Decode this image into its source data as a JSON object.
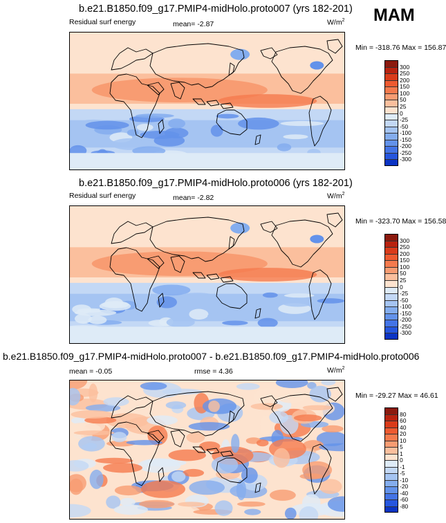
{
  "season": "MAM",
  "panels": [
    {
      "title": "b.e21.B1850.f09_g17.PMIP4-midHolo.proto007 (yrs 182-201)",
      "left_label": "Residual surf energy",
      "mean_text": "mean=  -2.87",
      "rmse_text": "",
      "units_base": "W/m",
      "units_exp": "2",
      "minmax_text": "Min = -318.76 Max = 156.87",
      "colorbar": {
        "labels": [
          "300",
          "250",
          "200",
          "150",
          "100",
          "50",
          "25",
          "0",
          "-25",
          "-50",
          "-100",
          "-150",
          "-200",
          "-250",
          "-300"
        ],
        "colors": [
          "#8b1a0e",
          "#b8230f",
          "#d93b1a",
          "#ee5a30",
          "#f57a4d",
          "#f89c72",
          "#fbbf9d",
          "#fde3cf",
          "#deebf7",
          "#c3d8f5",
          "#a5c4f2",
          "#84adee",
          "#6392ea",
          "#4474e6",
          "#2656de",
          "#0b34c4"
        ]
      },
      "data_mean": -2.87,
      "data_min": -318.76,
      "data_max": 156.87
    },
    {
      "title": "b.e21.B1850.f09_g17.PMIP4-midHolo.proto006 (yrs 182-201)",
      "left_label": "Residual surf energy",
      "mean_text": "mean=  -2.82",
      "rmse_text": "",
      "units_base": "W/m",
      "units_exp": "2",
      "minmax_text": "Min = -323.70 Max = 156.58",
      "colorbar": {
        "labels": [
          "300",
          "250",
          "200",
          "150",
          "100",
          "50",
          "25",
          "0",
          "-25",
          "-50",
          "-100",
          "-150",
          "-200",
          "-250",
          "-300"
        ],
        "colors": [
          "#8b1a0e",
          "#b8230f",
          "#d93b1a",
          "#ee5a30",
          "#f57a4d",
          "#f89c72",
          "#fbbf9d",
          "#fde3cf",
          "#deebf7",
          "#c3d8f5",
          "#a5c4f2",
          "#84adee",
          "#6392ea",
          "#4474e6",
          "#2656de",
          "#0b34c4"
        ]
      },
      "data_mean": -2.82,
      "data_min": -323.7,
      "data_max": 156.58
    },
    {
      "title": "b.e21.B1850.f09_g17.PMIP4-midHolo.proto007 - b.e21.B1850.f09_g17.PMIP4-midHolo.proto006",
      "left_label": "",
      "mean_text": "mean =  -0.05",
      "rmse_text": "rmse =   4.36",
      "units_base": "W/m",
      "units_exp": "2",
      "minmax_text": "Min = -29.27 Max =  46.61",
      "colorbar": {
        "labels": [
          "80",
          "60",
          "40",
          "20",
          "10",
          "5",
          "1",
          "0",
          "-1",
          "-5",
          "-10",
          "-20",
          "-40",
          "-60",
          "-80"
        ],
        "colors": [
          "#8b1a0e",
          "#b8230f",
          "#d93b1a",
          "#ee5a30",
          "#f57a4d",
          "#f89c72",
          "#fbbf9d",
          "#fde3cf",
          "#deebf7",
          "#c3d8f5",
          "#a5c4f2",
          "#84adee",
          "#6392ea",
          "#4474e6",
          "#2656de",
          "#0b34c4"
        ]
      },
      "data_mean": -0.05,
      "data_min": -29.27,
      "data_max": 46.61
    }
  ]
}
